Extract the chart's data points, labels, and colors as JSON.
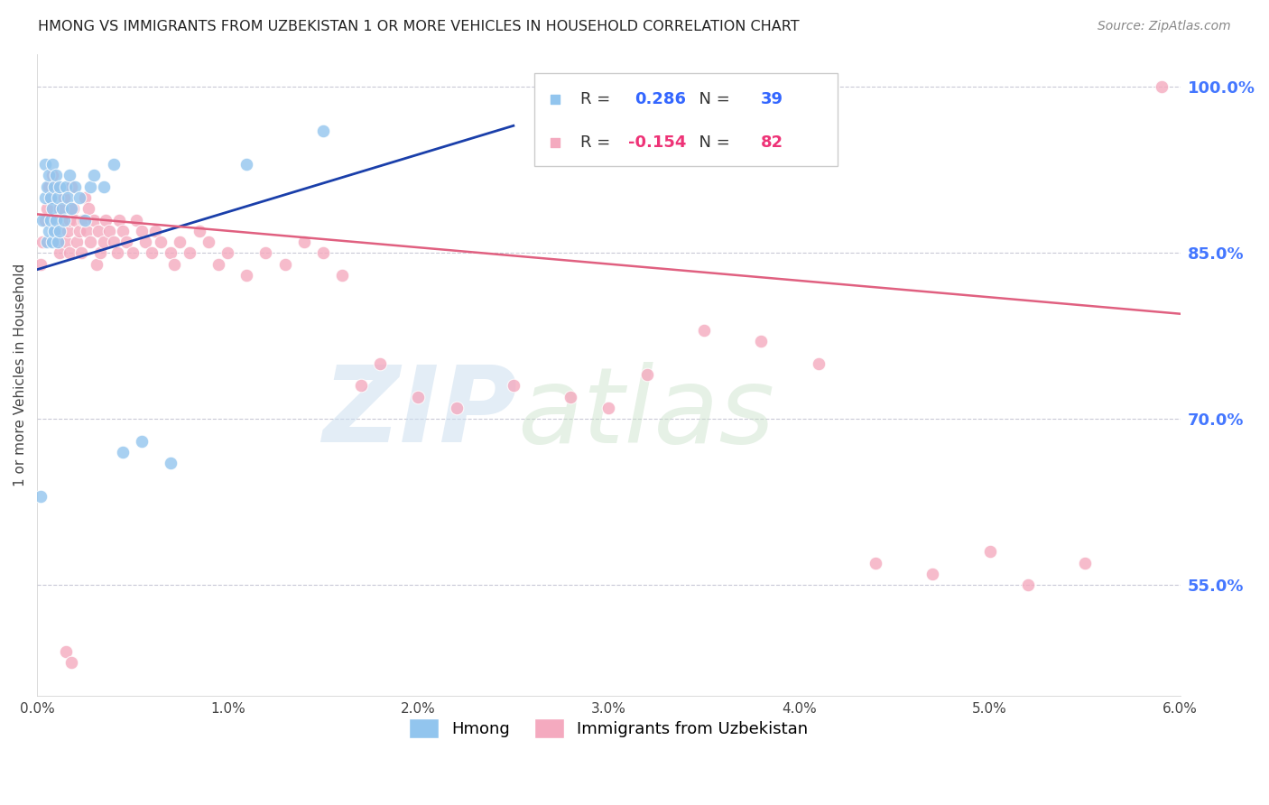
{
  "title": "HMONG VS IMMIGRANTS FROM UZBEKISTAN 1 OR MORE VEHICLES IN HOUSEHOLD CORRELATION CHART",
  "source": "Source: ZipAtlas.com",
  "ylabel": "1 or more Vehicles in Household",
  "xmin": 0.0,
  "xmax": 6.0,
  "ymin": 45.0,
  "ymax": 103.0,
  "yticks": [
    55.0,
    70.0,
    85.0,
    100.0
  ],
  "xticks": [
    0.0,
    1.0,
    2.0,
    3.0,
    4.0,
    5.0,
    6.0
  ],
  "hmong_R": 0.286,
  "hmong_N": 39,
  "uzbek_R": -0.154,
  "uzbek_N": 82,
  "hmong_color": "#92C5EE",
  "uzbek_color": "#F4AABF",
  "trendline_hmong_color": "#1A3FAA",
  "trendline_uzbek_color": "#E06080",
  "background_color": "#FFFFFF",
  "hmong_x": [
    0.02,
    0.03,
    0.04,
    0.04,
    0.05,
    0.05,
    0.06,
    0.06,
    0.07,
    0.07,
    0.08,
    0.08,
    0.08,
    0.09,
    0.09,
    0.1,
    0.1,
    0.11,
    0.11,
    0.12,
    0.12,
    0.13,
    0.14,
    0.15,
    0.16,
    0.17,
    0.18,
    0.2,
    0.22,
    0.25,
    0.28,
    0.3,
    0.35,
    0.4,
    0.45,
    0.55,
    0.7,
    1.1,
    1.5
  ],
  "hmong_y": [
    63.0,
    88.0,
    90.0,
    93.0,
    86.0,
    91.0,
    87.0,
    92.0,
    88.0,
    90.0,
    86.0,
    89.0,
    93.0,
    87.0,
    91.0,
    88.0,
    92.0,
    86.0,
    90.0,
    87.0,
    91.0,
    89.0,
    88.0,
    91.0,
    90.0,
    92.0,
    89.0,
    91.0,
    90.0,
    88.0,
    91.0,
    92.0,
    91.0,
    93.0,
    67.0,
    68.0,
    66.0,
    93.0,
    96.0
  ],
  "uzbek_x": [
    0.02,
    0.03,
    0.04,
    0.05,
    0.06,
    0.07,
    0.08,
    0.09,
    0.1,
    0.1,
    0.11,
    0.12,
    0.12,
    0.13,
    0.14,
    0.15,
    0.16,
    0.17,
    0.17,
    0.18,
    0.19,
    0.2,
    0.21,
    0.22,
    0.23,
    0.24,
    0.25,
    0.26,
    0.27,
    0.28,
    0.3,
    0.31,
    0.32,
    0.33,
    0.35,
    0.36,
    0.38,
    0.4,
    0.42,
    0.43,
    0.45,
    0.47,
    0.5,
    0.52,
    0.55,
    0.57,
    0.6,
    0.62,
    0.65,
    0.7,
    0.72,
    0.75,
    0.8,
    0.85,
    0.9,
    0.95,
    1.0,
    1.1,
    1.2,
    1.3,
    1.4,
    1.5,
    1.6,
    1.7,
    1.8,
    2.0,
    2.2,
    2.5,
    2.8,
    3.0,
    3.2,
    3.5,
    3.8,
    4.1,
    4.4,
    4.7,
    5.0,
    5.2,
    5.5,
    5.9,
    0.15,
    0.18
  ],
  "uzbek_y": [
    84.0,
    86.0,
    88.0,
    89.0,
    91.0,
    90.0,
    92.0,
    88.0,
    87.0,
    91.0,
    86.0,
    89.0,
    85.0,
    88.0,
    90.0,
    86.0,
    87.0,
    85.0,
    88.0,
    91.0,
    89.0,
    88.0,
    86.0,
    87.0,
    85.0,
    88.0,
    90.0,
    87.0,
    89.0,
    86.0,
    88.0,
    84.0,
    87.0,
    85.0,
    86.0,
    88.0,
    87.0,
    86.0,
    85.0,
    88.0,
    87.0,
    86.0,
    85.0,
    88.0,
    87.0,
    86.0,
    85.0,
    87.0,
    86.0,
    85.0,
    84.0,
    86.0,
    85.0,
    87.0,
    86.0,
    84.0,
    85.0,
    83.0,
    85.0,
    84.0,
    86.0,
    85.0,
    83.0,
    73.0,
    75.0,
    72.0,
    71.0,
    73.0,
    72.0,
    71.0,
    74.0,
    78.0,
    77.0,
    75.0,
    57.0,
    56.0,
    58.0,
    55.0,
    57.0,
    100.0,
    49.0,
    48.0
  ],
  "uzbek_trend_x0": 0.0,
  "uzbek_trend_y0": 88.5,
  "uzbek_trend_x1": 6.0,
  "uzbek_trend_y1": 79.5,
  "hmong_trend_x0": 0.0,
  "hmong_trend_y0": 83.5,
  "hmong_trend_x1": 2.5,
  "hmong_trend_y1": 96.5
}
